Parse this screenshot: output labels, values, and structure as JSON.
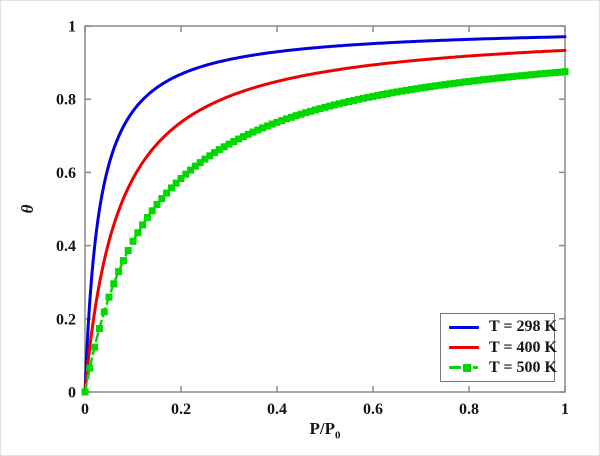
{
  "figure": {
    "background": "#ffffff",
    "frame_color": "#8a8a8a",
    "tick_label_color": "#151515"
  },
  "chart_data": {
    "type": "line",
    "title": "",
    "xlabel": "P/P",
    "xlabel_subscript": "0",
    "ylabel": "θ",
    "xlim": [
      0,
      1
    ],
    "ylim": [
      0,
      1
    ],
    "grid": false,
    "x_ticks": [
      0,
      0.2,
      0.4,
      0.6,
      0.8,
      1
    ],
    "x_tick_labels": [
      "0",
      "0.2",
      "0.4",
      "0.6",
      "0.8",
      "1"
    ],
    "y_ticks": [
      0,
      0.2,
      0.4,
      0.6,
      0.8,
      1
    ],
    "y_tick_labels": [
      "0",
      "0.2",
      "0.4",
      "0.6",
      "0.8",
      "1"
    ],
    "legend": {
      "position": "bottom-right",
      "border_color": "#787878",
      "background": "#ffffff"
    },
    "series": [
      {
        "name": "T = 298 K",
        "color": "#0000e0",
        "line_style": "solid",
        "line_width": 3,
        "marker": "none",
        "langmuir_K": 33,
        "x": [
          0,
          0.002,
          0.005,
          0.01,
          0.02,
          0.03,
          0.04,
          0.05,
          0.06,
          0.07,
          0.08,
          0.09,
          0.1,
          0.12,
          0.14,
          0.16,
          0.18,
          0.2,
          0.25,
          0.3,
          0.35,
          0.4,
          0.45,
          0.5,
          0.55,
          0.6,
          0.65,
          0.7,
          0.75,
          0.8,
          0.85,
          0.9,
          0.95,
          1
        ],
        "y": [
          0,
          0.062,
          0.142,
          0.248,
          0.398,
          0.497,
          0.569,
          0.623,
          0.664,
          0.698,
          0.725,
          0.748,
          0.767,
          0.798,
          0.822,
          0.841,
          0.856,
          0.868,
          0.892,
          0.908,
          0.92,
          0.93,
          0.937,
          0.943,
          0.948,
          0.952,
          0.955,
          0.959,
          0.961,
          0.964,
          0.966,
          0.967,
          0.969,
          0.971
        ]
      },
      {
        "name": "T = 400 K",
        "color": "#ee0000",
        "line_style": "solid",
        "line_width": 3,
        "marker": "none",
        "langmuir_K": 14,
        "x": [
          0,
          0.002,
          0.005,
          0.01,
          0.02,
          0.03,
          0.04,
          0.05,
          0.06,
          0.07,
          0.08,
          0.09,
          0.1,
          0.12,
          0.14,
          0.16,
          0.18,
          0.2,
          0.25,
          0.3,
          0.35,
          0.4,
          0.45,
          0.5,
          0.55,
          0.6,
          0.65,
          0.7,
          0.75,
          0.8,
          0.85,
          0.9,
          0.95,
          1
        ],
        "y": [
          0,
          0.027,
          0.065,
          0.123,
          0.219,
          0.296,
          0.359,
          0.412,
          0.457,
          0.495,
          0.528,
          0.558,
          0.583,
          0.627,
          0.662,
          0.691,
          0.716,
          0.737,
          0.778,
          0.808,
          0.831,
          0.848,
          0.863,
          0.875,
          0.885,
          0.894,
          0.901,
          0.907,
          0.913,
          0.918,
          0.922,
          0.926,
          0.93,
          0.933
        ]
      },
      {
        "name": "T = 500 K",
        "color": "#00d800",
        "line_style": "dashed",
        "line_width": 2.5,
        "marker": "square",
        "marker_size": 7,
        "marker_step": 0.01,
        "langmuir_K": 7,
        "x": [
          0,
          0.002,
          0.005,
          0.01,
          0.02,
          0.03,
          0.04,
          0.05,
          0.06,
          0.07,
          0.08,
          0.09,
          0.1,
          0.12,
          0.14,
          0.16,
          0.18,
          0.2,
          0.25,
          0.3,
          0.35,
          0.4,
          0.45,
          0.5,
          0.55,
          0.6,
          0.65,
          0.7,
          0.75,
          0.8,
          0.85,
          0.9,
          0.95,
          1
        ],
        "y": [
          0,
          0.014,
          0.034,
          0.065,
          0.123,
          0.174,
          0.219,
          0.259,
          0.296,
          0.329,
          0.359,
          0.386,
          0.412,
          0.457,
          0.495,
          0.528,
          0.558,
          0.583,
          0.636,
          0.677,
          0.71,
          0.737,
          0.759,
          0.778,
          0.794,
          0.808,
          0.82,
          0.831,
          0.84,
          0.848,
          0.856,
          0.863,
          0.869,
          0.875
        ]
      }
    ]
  }
}
